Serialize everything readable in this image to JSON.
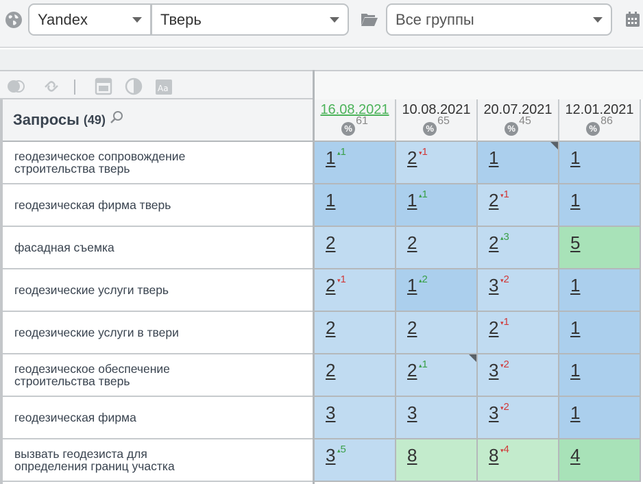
{
  "toolbar": {
    "engine": "Yandex",
    "region": "Тверь",
    "groups": "Все группы"
  },
  "queries_header": {
    "title": "Запросы",
    "count": "(49)"
  },
  "dates": [
    {
      "date": "16.08.2021",
      "percent": "61",
      "active": true
    },
    {
      "date": "10.08.2021",
      "percent": "65",
      "active": false
    },
    {
      "date": "20.07.2021",
      "percent": "45",
      "active": false
    },
    {
      "date": "12.01.2021",
      "percent": "86",
      "active": false
    }
  ],
  "rows": [
    {
      "query": "геодезическое сопровождение строительства тверь",
      "cells": [
        {
          "rank": "1",
          "delta": "1",
          "dir": "up",
          "color": "blue"
        },
        {
          "rank": "2",
          "delta": "1",
          "dir": "down",
          "color": "lblue"
        },
        {
          "rank": "1",
          "delta": "",
          "dir": "",
          "color": "blue",
          "corner": true
        },
        {
          "rank": "1",
          "delta": "",
          "dir": "",
          "color": "blue"
        }
      ]
    },
    {
      "query": "геодезическая фирма тверь",
      "cells": [
        {
          "rank": "1",
          "delta": "",
          "dir": "",
          "color": "blue"
        },
        {
          "rank": "1",
          "delta": "1",
          "dir": "up",
          "color": "blue"
        },
        {
          "rank": "2",
          "delta": "1",
          "dir": "down",
          "color": "lblue"
        },
        {
          "rank": "1",
          "delta": "",
          "dir": "",
          "color": "blue"
        }
      ]
    },
    {
      "query": "фасадная съемка",
      "cells": [
        {
          "rank": "2",
          "delta": "",
          "dir": "",
          "color": "lblue"
        },
        {
          "rank": "2",
          "delta": "",
          "dir": "",
          "color": "lblue"
        },
        {
          "rank": "2",
          "delta": "3",
          "dir": "up",
          "color": "lblue"
        },
        {
          "rank": "5",
          "delta": "",
          "dir": "",
          "color": "green"
        }
      ]
    },
    {
      "query": "геодезические услуги тверь",
      "cells": [
        {
          "rank": "2",
          "delta": "1",
          "dir": "down",
          "color": "lblue"
        },
        {
          "rank": "1",
          "delta": "2",
          "dir": "up",
          "color": "blue"
        },
        {
          "rank": "3",
          "delta": "2",
          "dir": "down",
          "color": "lblue"
        },
        {
          "rank": "1",
          "delta": "",
          "dir": "",
          "color": "blue"
        }
      ]
    },
    {
      "query": "геодезические услуги в твери",
      "cells": [
        {
          "rank": "2",
          "delta": "",
          "dir": "",
          "color": "lblue"
        },
        {
          "rank": "2",
          "delta": "",
          "dir": "",
          "color": "lblue"
        },
        {
          "rank": "2",
          "delta": "1",
          "dir": "down",
          "color": "lblue"
        },
        {
          "rank": "1",
          "delta": "",
          "dir": "",
          "color": "blue"
        }
      ]
    },
    {
      "query": "геодезическое обеспечение строительства тверь",
      "cells": [
        {
          "rank": "2",
          "delta": "",
          "dir": "",
          "color": "lblue"
        },
        {
          "rank": "2",
          "delta": "1",
          "dir": "up",
          "color": "lblue",
          "corner": true
        },
        {
          "rank": "3",
          "delta": "2",
          "dir": "down",
          "color": "lblue"
        },
        {
          "rank": "1",
          "delta": "",
          "dir": "",
          "color": "blue"
        }
      ]
    },
    {
      "query": "геодезическая фирма",
      "cells": [
        {
          "rank": "3",
          "delta": "",
          "dir": "",
          "color": "lblue"
        },
        {
          "rank": "3",
          "delta": "",
          "dir": "",
          "color": "lblue"
        },
        {
          "rank": "3",
          "delta": "2",
          "dir": "down",
          "color": "lblue"
        },
        {
          "rank": "1",
          "delta": "",
          "dir": "",
          "color": "blue"
        }
      ]
    },
    {
      "query": "вызвать геодезиста для определения границ участка",
      "cells": [
        {
          "rank": "3",
          "delta": "5",
          "dir": "up",
          "color": "lblue"
        },
        {
          "rank": "8",
          "delta": "",
          "dir": "",
          "color": "lgreen"
        },
        {
          "rank": "8",
          "delta": "4",
          "dir": "down",
          "color": "lgreen"
        },
        {
          "rank": "4",
          "delta": "",
          "dir": "",
          "color": "green"
        }
      ]
    }
  ]
}
